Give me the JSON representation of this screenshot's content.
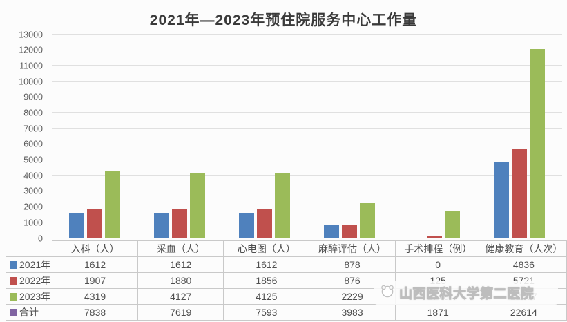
{
  "chart_data": {
    "type": "bar",
    "title": "2021年—2023年预住院服务中心工作量",
    "categories": [
      "入科（人）",
      "采血（人）",
      "心电图（人）",
      "麻醉评估（人）",
      "手术排程（例）",
      "健康教育（人次）"
    ],
    "series": [
      {
        "name": "2021年",
        "color": "#4F81BD",
        "values": [
          1612,
          1612,
          1612,
          878,
          0,
          4836
        ]
      },
      {
        "name": "2022年",
        "color": "#C0504D",
        "values": [
          1907,
          1880,
          1856,
          876,
          125,
          5721
        ]
      },
      {
        "name": "2023年",
        "color": "#9BBB59",
        "values": [
          4319,
          4127,
          4125,
          2229,
          1746,
          12057
        ]
      }
    ],
    "totals": {
      "name": "合计",
      "color": "#8064A2",
      "values": [
        7838,
        7619,
        7593,
        3983,
        1871,
        22614
      ]
    },
    "ylim": [
      0,
      13000
    ],
    "ytick_step": 1000,
    "ytick_labels": [
      "0",
      "1000",
      "2000",
      "3000",
      "4000",
      "5000",
      "6000",
      "7000",
      "8000",
      "9000",
      "10000",
      "11000",
      "12000",
      "13000"
    ],
    "grid": true,
    "legend_position": "table-left",
    "xlabel": "",
    "ylabel": ""
  },
  "watermark": {
    "text": "山西医科大学第二医院"
  }
}
